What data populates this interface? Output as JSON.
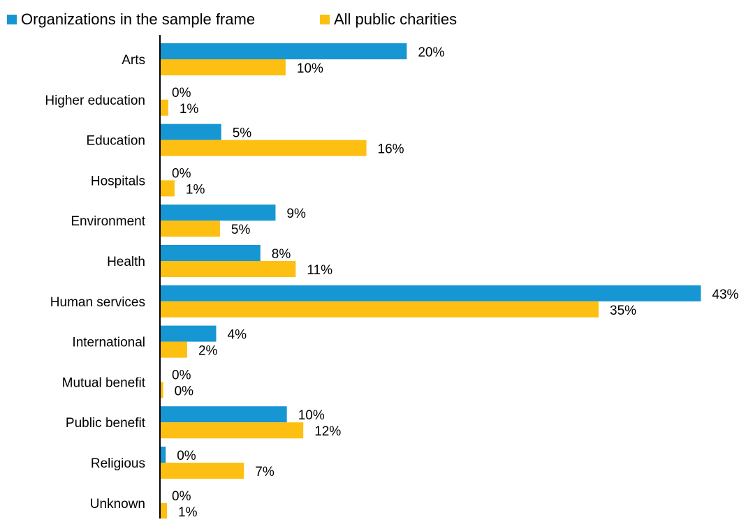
{
  "chart_data": {
    "type": "bar",
    "orientation": "horizontal",
    "categories": [
      "Arts",
      "Higher education",
      "Education",
      "Hospitals",
      "Environment",
      "Health",
      "Human services",
      "International",
      "Mutual benefit",
      "Public benefit",
      "Religious",
      "Unknown"
    ],
    "series": [
      {
        "name": "Organizations in the sample frame",
        "color": "#1696d2",
        "values": [
          20,
          0,
          5,
          0,
          9,
          8,
          43,
          4,
          0,
          10,
          0,
          0
        ],
        "bar_values": [
          19.5,
          0,
          4.8,
          0,
          9.1,
          7.9,
          42.8,
          4.4,
          0,
          10.0,
          0.4,
          0
        ],
        "labels": [
          "20%",
          "0%",
          "5%",
          "0%",
          "9%",
          "8%",
          "43%",
          "4%",
          "0%",
          "10%",
          "0%",
          "0%"
        ]
      },
      {
        "name": "All public charities",
        "color": "#fdbf11",
        "values": [
          10,
          1,
          16,
          1,
          5,
          11,
          35,
          2,
          0,
          12,
          7,
          1
        ],
        "bar_values": [
          9.9,
          0.6,
          16.3,
          1.1,
          4.7,
          10.7,
          34.7,
          2.1,
          0.2,
          11.3,
          6.6,
          0.5
        ],
        "labels": [
          "10%",
          "1%",
          "16%",
          "1%",
          "5%",
          "11%",
          "35%",
          "2%",
          "0%",
          "12%",
          "7%",
          "1%"
        ]
      }
    ],
    "xlim": [
      0,
      43
    ],
    "unit": "%",
    "grid": false,
    "legend_position": "top-left"
  }
}
